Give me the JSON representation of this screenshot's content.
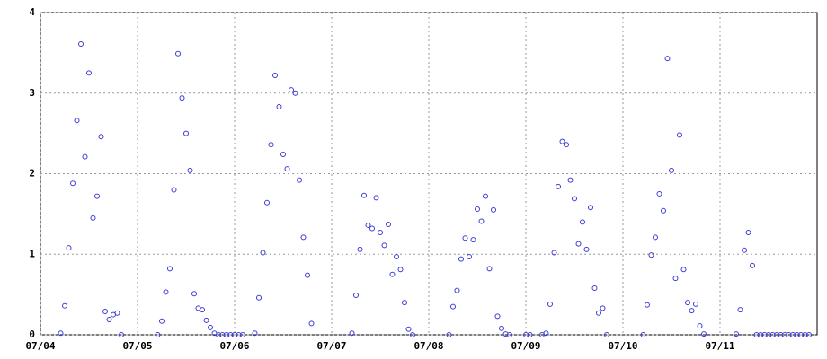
{
  "chart_data": {
    "type": "scatter",
    "xlim": [
      0,
      192
    ],
    "ylim": [
      0,
      4
    ],
    "xticks": [
      {
        "value": 0,
        "label": "07/04"
      },
      {
        "value": 24,
        "label": "07/05"
      },
      {
        "value": 48,
        "label": "07/06"
      },
      {
        "value": 72,
        "label": "07/07"
      },
      {
        "value": 96,
        "label": "07/08"
      },
      {
        "value": 120,
        "label": "07/09"
      },
      {
        "value": 144,
        "label": "07/10"
      },
      {
        "value": 168,
        "label": "07/11"
      }
    ],
    "yticks": [
      0,
      1,
      2,
      3,
      4
    ],
    "grid": true,
    "color": "#3b3bd6",
    "x": [
      5,
      6,
      7,
      8,
      9,
      10,
      11,
      12,
      13,
      14,
      15,
      16,
      17,
      18,
      19,
      20,
      29,
      30,
      31,
      32,
      33,
      34,
      35,
      36,
      37,
      38,
      39,
      40,
      41,
      42,
      43,
      44,
      45,
      46,
      47,
      48,
      49,
      50,
      53,
      54,
      55,
      56,
      57,
      58,
      59,
      60,
      61,
      62,
      63,
      64,
      65,
      66,
      67,
      77,
      78,
      79,
      80,
      81,
      82,
      83,
      84,
      85,
      86,
      87,
      88,
      89,
      90,
      91,
      92,
      101,
      102,
      103,
      104,
      105,
      106,
      107,
      108,
      109,
      110,
      111,
      112,
      113,
      114,
      115,
      116,
      120,
      121,
      124,
      125,
      126,
      127,
      128,
      129,
      130,
      131,
      132,
      133,
      134,
      135,
      136,
      137,
      138,
      139,
      140,
      149,
      150,
      151,
      152,
      153,
      154,
      155,
      156,
      157,
      158,
      159,
      160,
      161,
      162,
      163,
      164,
      172,
      173,
      174,
      175,
      176,
      177,
      178,
      179,
      180,
      181,
      182,
      183,
      184,
      185,
      186,
      187,
      188,
      189,
      190
    ],
    "values": [
      0.02,
      0.36,
      1.08,
      1.88,
      2.66,
      3.61,
      2.21,
      3.25,
      1.45,
      1.72,
      2.46,
      0.29,
      0.19,
      0.25,
      0.27,
      0,
      0,
      0.17,
      0.53,
      0.82,
      1.8,
      3.49,
      2.94,
      2.5,
      2.04,
      0.51,
      0.33,
      0.31,
      0.18,
      0.09,
      0.02,
      0,
      0,
      0,
      0,
      0,
      0,
      0,
      0.02,
      0.46,
      1.02,
      1.64,
      2.36,
      3.22,
      2.83,
      2.24,
      2.06,
      3.04,
      3.0,
      1.92,
      1.21,
      0.74,
      0.14,
      0.02,
      0.49,
      1.06,
      1.73,
      1.36,
      1.32,
      1.7,
      1.27,
      1.11,
      1.37,
      0.75,
      0.97,
      0.81,
      0.4,
      0.07,
      0,
      0,
      0.35,
      0.55,
      0.94,
      1.2,
      0.97,
      1.18,
      1.56,
      1.41,
      1.72,
      0.82,
      1.55,
      0.23,
      0.08,
      0.01,
      0,
      0,
      0,
      0,
      0.02,
      0.38,
      1.02,
      1.84,
      2.4,
      2.36,
      1.92,
      1.69,
      1.13,
      1.4,
      1.06,
      1.58,
      0.58,
      0.27,
      0.33,
      0,
      0,
      0.37,
      0.99,
      1.21,
      1.75,
      1.54,
      3.43,
      2.04,
      0.7,
      2.48,
      0.81,
      0.4,
      0.3,
      0.38,
      0.11,
      0.01,
      0.01,
      0.31,
      1.05,
      1.27,
      0.86,
      0,
      0,
      0,
      0,
      0,
      0,
      0,
      0,
      0,
      0,
      0,
      0,
      0,
      0
    ]
  }
}
